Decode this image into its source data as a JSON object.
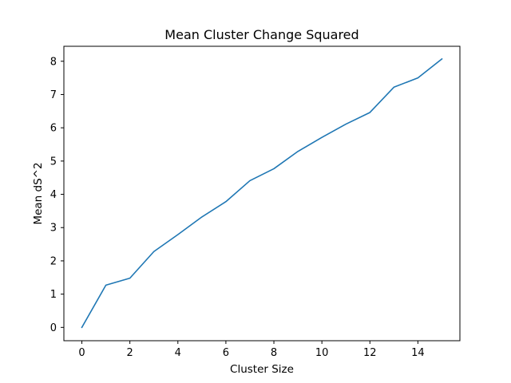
{
  "chart_data": {
    "type": "line",
    "title": "Mean Cluster Change Squared",
    "xlabel": "Cluster Size",
    "ylabel": "Mean dS^2",
    "xlim": [
      -0.75,
      15.75
    ],
    "ylim": [
      -0.4,
      8.45
    ],
    "xticks": [
      0,
      2,
      4,
      6,
      8,
      10,
      12,
      14
    ],
    "xtick_labels": [
      "0",
      "2",
      "4",
      "6",
      "8",
      "10",
      "12",
      "14"
    ],
    "yticks": [
      0,
      1,
      2,
      3,
      4,
      5,
      6,
      7,
      8
    ],
    "ytick_labels": [
      "0",
      "1",
      "2",
      "3",
      "4",
      "5",
      "6",
      "7",
      "8"
    ],
    "grid": false,
    "legend": "none",
    "series": [
      {
        "color": "#1f77b4",
        "x": [
          0,
          1,
          2,
          3,
          4,
          5,
          6,
          7,
          8,
          9,
          10,
          11,
          12,
          13,
          14,
          15
        ],
        "y": [
          0.0,
          1.27,
          1.48,
          2.28,
          2.79,
          3.32,
          3.78,
          4.41,
          4.77,
          5.29,
          5.71,
          6.11,
          6.46,
          7.22,
          7.5,
          8.07
        ]
      }
    ]
  }
}
